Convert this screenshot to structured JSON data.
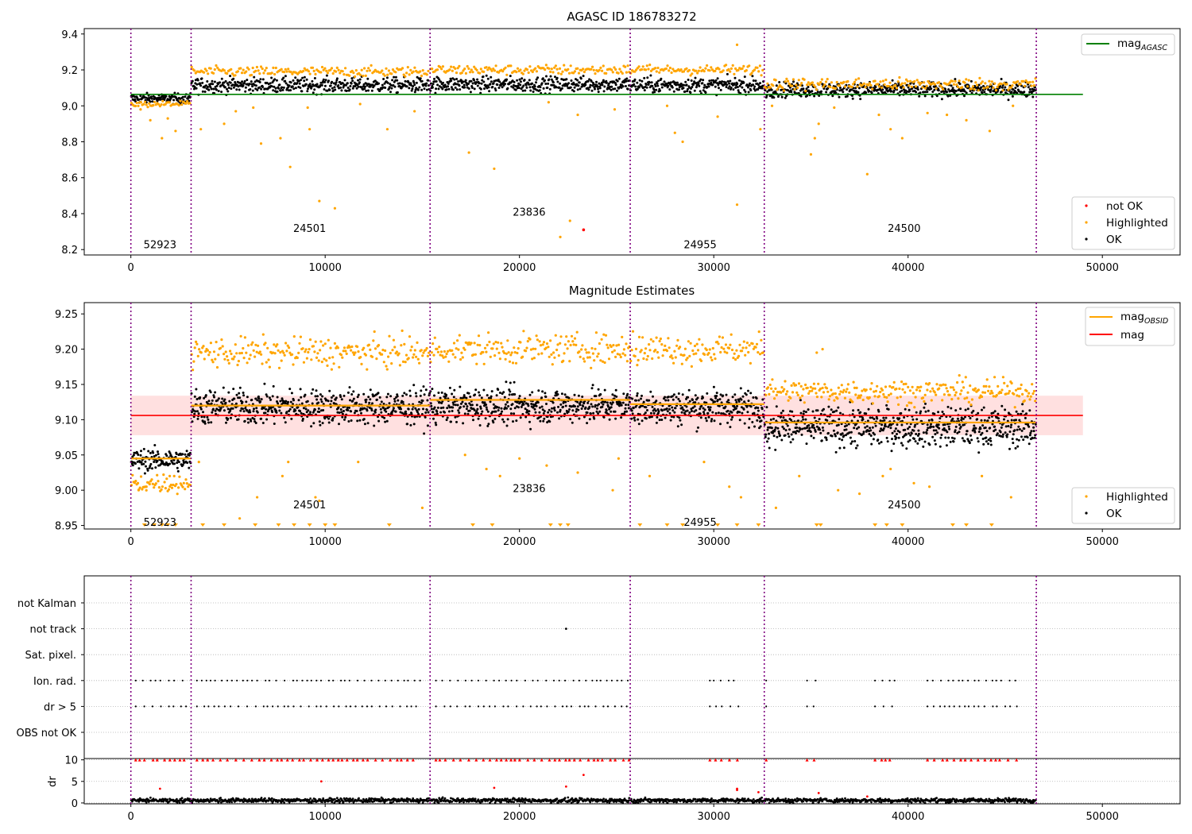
{
  "colors": {
    "ok": "#000000",
    "highlighted": "#ffa500",
    "not_ok": "#ff0000",
    "mag_agasc_line": "#008000",
    "mag_line": "#ff0000",
    "mag_obsid_line": "#ffa500",
    "mag_band": "#ffe0e0",
    "obsid_boundary": "#800080",
    "gridline": "#b0b0b0"
  },
  "obsid_boundaries": [
    0,
    3100,
    15400,
    25700,
    32600,
    46600
  ],
  "chart_data": [
    {
      "type": "scatter",
      "title": "AGASC ID 186783272",
      "xlim": [
        -2400,
        54000
      ],
      "ylim": [
        8.17,
        9.43
      ],
      "xticks": [
        0,
        10000,
        20000,
        30000,
        40000,
        50000
      ],
      "yticks": [
        8.2,
        8.4,
        8.6,
        8.8,
        9.0,
        9.2,
        9.4
      ],
      "ytick_labels": [
        "8.2",
        "8.4",
        "8.6",
        "8.8",
        "9.0",
        "9.2",
        "9.4"
      ],
      "mag_agasc": 9.064,
      "mag_agasc_range": [
        0,
        49000
      ],
      "legend_upper": [
        "mag_AGASC"
      ],
      "legend_lower": [
        "not OK",
        "Highlighted",
        "OK"
      ],
      "obsid_labels": [
        {
          "label": "52923",
          "x": 1500,
          "y": 8.23
        },
        {
          "label": "24501",
          "x": 9200,
          "y": 8.32
        },
        {
          "label": "23836",
          "x": 20500,
          "y": 8.41
        },
        {
          "label": "24955",
          "x": 29300,
          "y": 8.23
        },
        {
          "label": "24500",
          "x": 39800,
          "y": 8.32
        }
      ],
      "segments": [
        {
          "x": [
            0,
            3100
          ],
          "ok_mean": 9.04,
          "ok_spread": 0.02,
          "hi_mean": 9.01,
          "hi_spread": 0.012
        },
        {
          "x": [
            3100,
            15400
          ],
          "ok_mean": 9.115,
          "ok_spread": 0.03,
          "hi_mean": 9.19,
          "hi_spread": 0.02
        },
        {
          "x": [
            15400,
            25700
          ],
          "ok_mean": 9.12,
          "ok_spread": 0.03,
          "hi_mean": 9.2,
          "hi_spread": 0.02
        },
        {
          "x": [
            25700,
            32600
          ],
          "ok_mean": 9.115,
          "ok_spread": 0.03,
          "hi_mean": 9.2,
          "hi_spread": 0.02
        },
        {
          "x": [
            32600,
            46600
          ],
          "ok_mean": 9.09,
          "ok_spread": 0.03,
          "hi_mean": 9.12,
          "hi_spread": 0.025
        }
      ],
      "highlighted_outliers": [
        [
          500,
          8.98
        ],
        [
          1000,
          8.92
        ],
        [
          1600,
          8.82
        ],
        [
          1900,
          8.93
        ],
        [
          2300,
          8.86
        ],
        [
          3600,
          8.87
        ],
        [
          4800,
          8.9
        ],
        [
          5400,
          8.97
        ],
        [
          6300,
          8.99
        ],
        [
          6700,
          8.79
        ],
        [
          7700,
          8.82
        ],
        [
          8200,
          8.66
        ],
        [
          9100,
          8.99
        ],
        [
          9200,
          8.87
        ],
        [
          9700,
          8.47
        ],
        [
          10500,
          8.43
        ],
        [
          11800,
          9.01
        ],
        [
          13200,
          8.87
        ],
        [
          14600,
          8.97
        ],
        [
          17400,
          8.74
        ],
        [
          18700,
          8.65
        ],
        [
          21500,
          9.02
        ],
        [
          22100,
          8.27
        ],
        [
          22600,
          8.36
        ],
        [
          23000,
          8.95
        ],
        [
          24900,
          8.98
        ],
        [
          27600,
          9.0
        ],
        [
          28000,
          8.85
        ],
        [
          28400,
          8.8
        ],
        [
          30200,
          8.94
        ],
        [
          31200,
          8.45
        ],
        [
          31200,
          9.34
        ],
        [
          32400,
          8.87
        ],
        [
          33000,
          9.0
        ],
        [
          35000,
          8.73
        ],
        [
          35200,
          8.82
        ],
        [
          35400,
          8.9
        ],
        [
          36200,
          8.99
        ],
        [
          37900,
          8.62
        ],
        [
          38500,
          8.95
        ],
        [
          39100,
          8.87
        ],
        [
          39700,
          8.82
        ],
        [
          41000,
          8.96
        ],
        [
          42000,
          8.95
        ],
        [
          43000,
          8.92
        ],
        [
          44200,
          8.86
        ],
        [
          45400,
          9.0
        ]
      ],
      "not_ok_points": [
        [
          23300,
          8.31
        ]
      ]
    },
    {
      "type": "scatter",
      "title": "Magnitude Estimates",
      "xlim": [
        -2400,
        54000
      ],
      "ylim": [
        8.945,
        9.266
      ],
      "xticks": [
        0,
        10000,
        20000,
        30000,
        40000,
        50000
      ],
      "yticks": [
        8.95,
        9.0,
        9.05,
        9.1,
        9.15,
        9.2,
        9.25
      ],
      "ytick_labels": [
        "8.95",
        "9.00",
        "9.05",
        "9.10",
        "9.15",
        "9.20",
        "9.25"
      ],
      "mag": 9.106,
      "mag_band": [
        9.078,
        9.134
      ],
      "mag_range": [
        0,
        49000
      ],
      "mag_obsid": [
        {
          "x": [
            0,
            3100
          ],
          "value": 9.045
        },
        {
          "x": [
            3100,
            15400
          ],
          "value": 9.12
        },
        {
          "x": [
            15400,
            25700
          ],
          "value": 9.128
        },
        {
          "x": [
            25700,
            32600
          ],
          "value": 9.122
        },
        {
          "x": [
            32600,
            46600
          ],
          "value": 9.096
        }
      ],
      "legend_upper": [
        "mag_OBSID",
        "mag"
      ],
      "legend_lower": [
        "Highlighted",
        "OK"
      ],
      "obsid_labels": [
        {
          "label": "52923",
          "x": 1500,
          "y": 8.955
        },
        {
          "label": "24501",
          "x": 9200,
          "y": 8.98
        },
        {
          "label": "23836",
          "x": 20500,
          "y": 9.003
        },
        {
          "label": "24955",
          "x": 29300,
          "y": 8.955
        },
        {
          "label": "24500",
          "x": 39800,
          "y": 8.98
        }
      ],
      "segments": [
        {
          "x": [
            0,
            3100
          ],
          "ok_mean": 9.043,
          "ok_spread": 0.011,
          "hi_mean": 9.01,
          "hi_spread": 0.01
        },
        {
          "x": [
            3100,
            15400
          ],
          "ok_mean": 9.118,
          "ok_spread": 0.018,
          "hi_mean": 9.195,
          "hi_spread": 0.015
        },
        {
          "x": [
            15400,
            25700
          ],
          "ok_mean": 9.12,
          "ok_spread": 0.018,
          "hi_mean": 9.2,
          "hi_spread": 0.015
        },
        {
          "x": [
            25700,
            32600
          ],
          "ok_mean": 9.118,
          "ok_spread": 0.018,
          "hi_mean": 9.2,
          "hi_spread": 0.015
        },
        {
          "x": [
            32600,
            46600
          ],
          "ok_mean": 9.09,
          "ok_spread": 0.02,
          "hi_mean": 9.14,
          "hi_spread": 0.012
        }
      ],
      "clipped_markers_x": [
        700,
        1200,
        1600,
        1900,
        2300,
        3700,
        4800,
        6400,
        7600,
        8400,
        9200,
        10000,
        10500,
        13300,
        17600,
        18600,
        21600,
        22100,
        22500,
        26200,
        27600,
        28400,
        30200,
        31200,
        32300,
        35300,
        35500,
        38300,
        38900,
        39700,
        42300,
        43000,
        44300
      ],
      "highlighted_outliers": [
        [
          400,
          9.0
        ],
        [
          800,
          9.005
        ],
        [
          2000,
          9.02
        ],
        [
          3500,
          9.04
        ],
        [
          5600,
          8.96
        ],
        [
          6500,
          8.99
        ],
        [
          7800,
          9.02
        ],
        [
          8100,
          9.04
        ],
        [
          9500,
          8.99
        ],
        [
          9700,
          8.985
        ],
        [
          11700,
          9.04
        ],
        [
          15000,
          8.975
        ],
        [
          17200,
          9.05
        ],
        [
          18300,
          9.03
        ],
        [
          19000,
          9.02
        ],
        [
          20000,
          9.045
        ],
        [
          21400,
          9.035
        ],
        [
          23000,
          9.025
        ],
        [
          24800,
          9.0
        ],
        [
          25100,
          9.045
        ],
        [
          26700,
          9.02
        ],
        [
          29500,
          9.04
        ],
        [
          30800,
          9.005
        ],
        [
          31400,
          8.99
        ],
        [
          33200,
          8.975
        ],
        [
          34400,
          9.02
        ],
        [
          35300,
          9.195
        ],
        [
          35600,
          9.2
        ],
        [
          36400,
          9.0
        ],
        [
          37500,
          8.995
        ],
        [
          38700,
          9.02
        ],
        [
          39100,
          9.03
        ],
        [
          40300,
          9.01
        ],
        [
          41100,
          9.005
        ],
        [
          43800,
          9.02
        ],
        [
          45300,
          8.99
        ]
      ]
    },
    {
      "type": "scatter",
      "title": "",
      "xlim": [
        -2400,
        54000
      ],
      "categories": [
        "not Kalman",
        "not track",
        "Sat. pixel.",
        "Ion. rad.",
        "dr > 5",
        "OBS not OK"
      ],
      "flag_rows": [
        {
          "row": "not track",
          "x": [
            22400
          ]
        },
        {
          "row": "Ion. rad.",
          "ranges": [
            [
              250,
              2900
            ],
            [
              3400,
              14900
            ],
            [
              15700,
              25700
            ],
            [
              29800,
              31300
            ],
            [
              32700,
              32900
            ],
            [
              34800,
              35400
            ],
            [
              38300,
              39400
            ],
            [
              41000,
              45700
            ]
          ]
        },
        {
          "row": "dr > 5",
          "ranges": [
            [
              250,
              2900
            ],
            [
              3400,
              14900
            ],
            [
              15700,
              25700
            ],
            [
              29800,
              31300
            ],
            [
              32700,
              32900
            ],
            [
              34800,
              35400
            ],
            [
              38300,
              39400
            ],
            [
              41000,
              45700
            ]
          ]
        }
      ]
    },
    {
      "type": "scatter",
      "title": "",
      "ylabel": "dr",
      "xlim": [
        -2400,
        54000
      ],
      "ylim": [
        -0.2,
        10.3
      ],
      "xticks": [
        0,
        10000,
        20000,
        30000,
        40000,
        50000
      ],
      "yticks": [
        0,
        5,
        10
      ],
      "ytick_labels": [
        "0",
        "5",
        "10"
      ],
      "dr_ok_mean": 0.6,
      "dr_ok_spread": 0.35,
      "dr_capped_value": 10,
      "dr_outliers": [
        [
          1500,
          3.3
        ],
        [
          9800,
          5.0
        ],
        [
          18700,
          3.5
        ],
        [
          22400,
          3.8
        ],
        [
          23300,
          6.5
        ],
        [
          31200,
          3.3
        ],
        [
          31200,
          3.0
        ],
        [
          32300,
          2.5
        ],
        [
          35400,
          2.3
        ],
        [
          37900,
          1.5
        ]
      ]
    }
  ]
}
